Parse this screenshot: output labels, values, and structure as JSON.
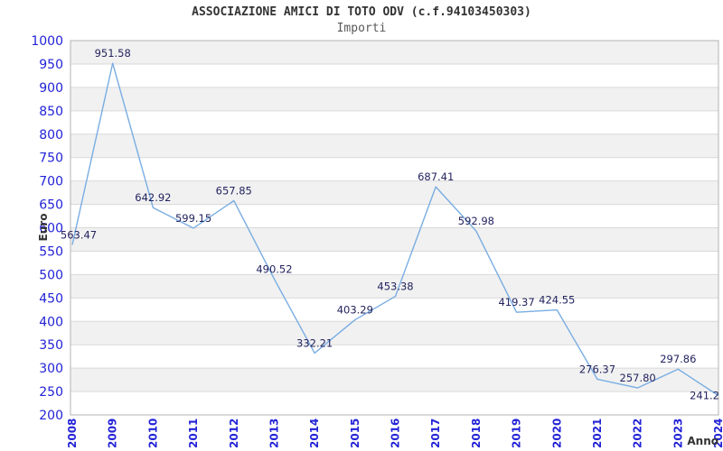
{
  "header": {
    "title": "ASSOCIAZIONE AMICI DI TOTO ODV (c.f.94103450303)",
    "subtitle": "Importi"
  },
  "chart_data": {
    "type": "line",
    "title": "ASSOCIAZIONE AMICI DI TOTO ODV (c.f.94103450303)",
    "subtitle": "Importi",
    "xlabel": "Anno",
    "ylabel": "Euro",
    "x": [
      2008,
      2009,
      2010,
      2011,
      2012,
      2013,
      2014,
      2015,
      2016,
      2017,
      2018,
      2019,
      2020,
      2021,
      2022,
      2023,
      2024
    ],
    "series": [
      {
        "name": "Importi",
        "values": [
          563.47,
          951.58,
          642.92,
          599.15,
          657.85,
          490.52,
          332.21,
          403.29,
          453.38,
          687.41,
          592.98,
          419.37,
          424.55,
          276.37,
          257.8,
          297.86,
          241.2
        ]
      }
    ],
    "point_labels": [
      "563.47",
      "951.58",
      "642.92",
      "599.15",
      "657.85",
      "490.52",
      "332.21",
      "403.29",
      "453.38",
      "687.41",
      "592.98",
      "419.37",
      "424.55",
      "276.37",
      "257.80",
      "297.86",
      "241.2"
    ],
    "ylim": [
      200,
      1000
    ],
    "ytick_step": 50,
    "grid": "horizontal-alternating-bands",
    "legend_position": "none",
    "colors": {
      "line": "#79ade2",
      "band": "#f1f1f1",
      "band_alt": "#ffffff",
      "grid": "#d9d9d9",
      "border": "#b3b3b3",
      "axis_tick": "#2323d7",
      "data_label": "#23235f",
      "title": "#333333",
      "subtitle": "#595959",
      "axis_title": "#333333"
    }
  }
}
